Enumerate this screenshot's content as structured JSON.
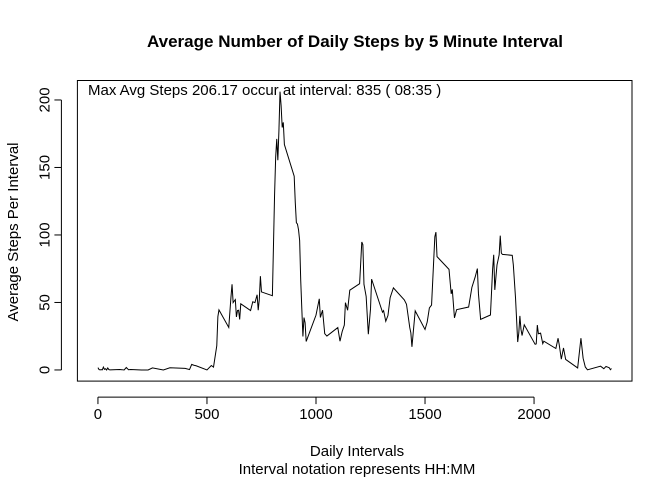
{
  "chart_data": {
    "type": "line",
    "title": "Average Number of Daily Steps by 5 Minute Interval",
    "xlabel": "Daily Intervals",
    "subtitle": "Interval notation represents HH:MM",
    "ylabel": "Average Steps Per Interval",
    "annotation": "Max Avg Steps  206.17  occur at interval:  835  ( 08:35 )",
    "color": "#000000",
    "x": [
      0,
      5,
      10,
      15,
      20,
      25,
      30,
      35,
      40,
      45,
      50,
      55,
      100,
      110,
      120,
      130,
      140,
      150,
      200,
      230,
      250,
      300,
      330,
      400,
      420,
      430,
      440,
      450,
      500,
      520,
      530,
      545,
      550,
      555,
      600,
      610,
      615,
      620,
      630,
      635,
      640,
      645,
      650,
      655,
      700,
      710,
      720,
      730,
      735,
      740,
      745,
      750,
      800,
      810,
      815,
      820,
      825,
      830,
      835,
      840,
      845,
      850,
      855,
      900,
      905,
      910,
      915,
      920,
      925,
      930,
      935,
      940,
      945,
      950,
      955,
      1000,
      1015,
      1020,
      1030,
      1040,
      1050,
      1100,
      1110,
      1120,
      1130,
      1135,
      1145,
      1155,
      1200,
      1210,
      1215,
      1220,
      1230,
      1240,
      1250,
      1255,
      1305,
      1310,
      1320,
      1330,
      1340,
      1345,
      1355,
      1405,
      1415,
      1430,
      1435,
      1440,
      1445,
      1455,
      1500,
      1510,
      1520,
      1530,
      1545,
      1550,
      1555,
      1610,
      1620,
      1625,
      1635,
      1645,
      1700,
      1715,
      1730,
      1740,
      1745,
      1755,
      1800,
      1810,
      1815,
      1820,
      1830,
      1840,
      1845,
      1850,
      1855,
      1900,
      1905,
      1915,
      1925,
      1930,
      1935,
      1940,
      1945,
      1955,
      2005,
      2010,
      2015,
      2020,
      2030,
      2040,
      2045,
      2100,
      2110,
      2115,
      2125,
      2135,
      2145,
      2200,
      2215,
      2225,
      2235,
      2245,
      2305,
      2320,
      2330,
      2345,
      2350,
      2355
    ],
    "values": [
      1.7,
      0.3,
      0.1,
      0.2,
      0.1,
      2.1,
      0.5,
      0.9,
      0,
      1.5,
      0.3,
      0.1,
      0.3,
      0.2,
      0,
      1.8,
      0.2,
      0.3,
      0,
      0,
      1.5,
      0,
      1.6,
      1.2,
      0.3,
      4.1,
      3.5,
      3.1,
      0,
      3.3,
      2.1,
      18,
      39.5,
      44.5,
      31.5,
      53.8,
      63.5,
      49.9,
      52.1,
      39.3,
      44,
      44.2,
      37.4,
      49,
      44,
      50.5,
      49.9,
      55.7,
      44.3,
      52.3,
      69.5,
      57.8,
      55,
      129.4,
      157.5,
      171.2,
      155.4,
      177.3,
      206.17,
      195.9,
      179.6,
      183.4,
      167,
      143.5,
      124,
      109.1,
      108.1,
      103.7,
      95.9,
      66.2,
      45.2,
      24.8,
      38.8,
      34.98,
      21.1,
      40.6,
      52.7,
      38.9,
      44.3,
      26.9,
      25.1,
      31.4,
      21.3,
      28.4,
      33.3,
      49.9,
      44.2,
      59.1,
      63.9,
      94.8,
      92.8,
      63.4,
      54.5,
      26.5,
      45.2,
      67.3,
      42.8,
      43.9,
      36.1,
      40.3,
      53.5,
      56,
      60.8,
      51.9,
      48.7,
      31.4,
      27.5,
      17.1,
      26.1,
      43.8,
      30,
      35.5,
      45.96,
      48.1,
      98.7,
      102.1,
      83.96,
      74.5,
      56.4,
      59.7,
      38.6,
      44.7,
      46.6,
      61.2,
      68.9,
      75.1,
      56.5,
      37.5,
      40.7,
      74.7,
      85.3,
      59.3,
      77.7,
      85.3,
      99.5,
      86.6,
      85.6,
      84.9,
      77.8,
      53.4,
      20.7,
      27.4,
      40,
      30.2,
      25.5,
      33.5,
      19,
      19.3,
      33.3,
      26.8,
      27.3,
      19.5,
      21.3,
      15.9,
      23.5,
      19.2,
      8,
      16.3,
      7.8,
      1.5,
      23.5,
      8.7,
      2.2,
      0.1,
      2.8,
      0.96,
      2.6,
      1.6,
      0.2,
      1.1
    ],
    "xlim": [
      -94.2,
      2449.2
    ],
    "xticks": [
      0,
      500,
      1000,
      1500,
      2000
    ],
    "ylim": [
      -8.25,
      214.42
    ],
    "yticks": [
      0,
      50,
      100,
      150,
      200
    ]
  }
}
